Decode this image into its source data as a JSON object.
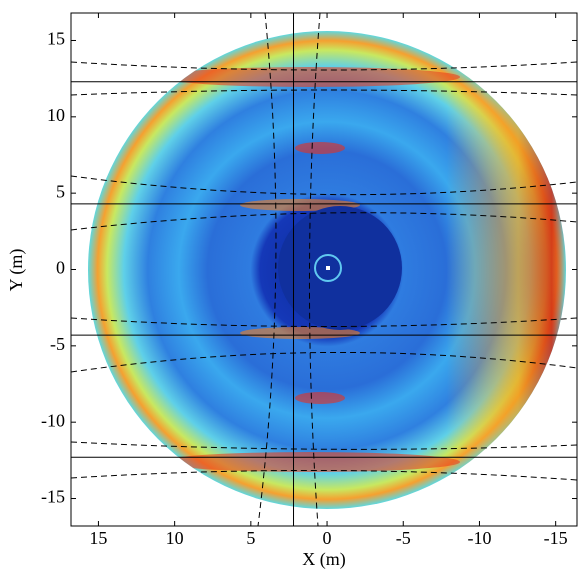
{
  "chart_data": {
    "type": "image",
    "xlabel": "X (m)",
    "ylabel": "Y (m)",
    "xlim": [
      16.8,
      -16.4
    ],
    "ylim": [
      -16.8,
      16.8
    ],
    "xticks": [
      15,
      10,
      5,
      0,
      -5,
      -10,
      -15
    ],
    "yticks": [
      -15,
      -10,
      -5,
      0,
      5,
      10,
      15
    ],
    "hlines": [
      12.3,
      4.3,
      -4.3,
      -12.3
    ],
    "vlines": [
      2.2
    ]
  }
}
